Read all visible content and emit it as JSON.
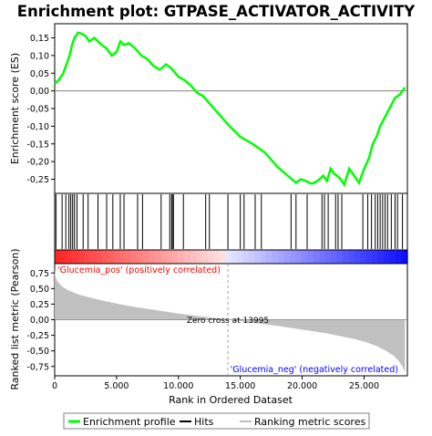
{
  "chart_data": {
    "type": "line",
    "title": "Enrichment plot: GTPASE_ACTIVATOR_ACTIVITY",
    "es_panel": {
      "ylabel": "Enrichment score (ES)",
      "ylim": [
        -0.29,
        0.19
      ],
      "yticks": [
        "0,15",
        "0,10",
        "0,05",
        "0,00",
        "-0,05",
        "-0,10",
        "-0,15",
        "-0,20",
        "-0,25"
      ],
      "ytick_values": [
        0.15,
        0.1,
        0.05,
        0.0,
        -0.05,
        -0.1,
        -0.15,
        -0.2,
        -0.25
      ],
      "series": [
        {
          "name": "Enrichment profile",
          "color": "#00ff00",
          "x": [
            0,
            300,
            700,
            900,
            1200,
            1400,
            1600,
            1900,
            2300,
            2500,
            2800,
            3200,
            3500,
            3800,
            4200,
            4600,
            5000,
            5300,
            5600,
            6000,
            6500,
            7000,
            7500,
            8000,
            8500,
            9000,
            9400,
            10000,
            10500,
            11000,
            11500,
            12000,
            13000,
            14000,
            15000,
            16000,
            17000,
            18000,
            19000,
            19500,
            19900,
            20300,
            20700,
            21000,
            21400,
            21700,
            22000,
            22300,
            22600,
            23000,
            23400,
            23800,
            24200,
            24600,
            25000,
            25400,
            25700,
            26000,
            26300,
            26600,
            26900,
            27200,
            27500,
            27900,
            28300
          ],
          "y": [
            0.02,
            0.03,
            0.05,
            0.07,
            0.1,
            0.13,
            0.15,
            0.165,
            0.16,
            0.155,
            0.14,
            0.15,
            0.14,
            0.13,
            0.12,
            0.1,
            0.11,
            0.14,
            0.13,
            0.135,
            0.12,
            0.1,
            0.09,
            0.07,
            0.06,
            0.075,
            0.065,
            0.04,
            0.03,
            0.015,
            -0.005,
            -0.015,
            -0.055,
            -0.095,
            -0.13,
            -0.15,
            -0.175,
            -0.215,
            -0.245,
            -0.26,
            -0.25,
            -0.255,
            -0.262,
            -0.26,
            -0.25,
            -0.24,
            -0.255,
            -0.22,
            -0.235,
            -0.245,
            -0.265,
            -0.22,
            -0.24,
            -0.26,
            -0.22,
            -0.19,
            -0.15,
            -0.13,
            -0.1,
            -0.08,
            -0.06,
            -0.04,
            -0.02,
            -0.01,
            0.01
          ]
        }
      ]
    },
    "hits_panel": {
      "label": "Hits",
      "hit_ranks": [
        100,
        600,
        900,
        1150,
        1300,
        1450,
        1600,
        1800,
        2300,
        2700,
        3500,
        4200,
        4700,
        5300,
        5600,
        6700,
        7100,
        8600,
        9300,
        9450,
        9500,
        9600,
        10400,
        12200,
        12500,
        14000,
        15000,
        15300,
        16200,
        16700,
        19100,
        19500,
        20400,
        21600,
        21800,
        22100,
        22700,
        22900,
        23200,
        24900,
        25300,
        25600,
        25900,
        26100,
        26300,
        26500,
        26700,
        26900,
        27200,
        27500,
        27700,
        28100
      ]
    },
    "metric_panel": {
      "ylabel": "Ranked list metric (Pearson)",
      "ylim": [
        -0.9,
        0.9
      ],
      "yticks": [
        "0,75",
        "0,50",
        "0,25",
        "0,00",
        "-0,25",
        "-0,50",
        "-0,75"
      ],
      "ytick_values": [
        0.75,
        0.5,
        0.25,
        0.0,
        -0.25,
        -0.5,
        -0.75
      ],
      "color": "#c0c0c0",
      "x": [
        0,
        50,
        200,
        500,
        1000,
        2000,
        3000,
        4000,
        6000,
        8000,
        10000,
        12000,
        13995,
        16000,
        18000,
        20000,
        22000,
        24000,
        25000,
        26000,
        26800,
        27400,
        27800,
        28100,
        28300
      ],
      "y": [
        0.82,
        0.7,
        0.62,
        0.55,
        0.48,
        0.4,
        0.35,
        0.3,
        0.22,
        0.16,
        0.1,
        0.05,
        0.0,
        -0.05,
        -0.1,
        -0.16,
        -0.22,
        -0.3,
        -0.35,
        -0.42,
        -0.5,
        -0.58,
        -0.66,
        -0.75,
        -0.85
      ],
      "zero_cross_label": "Zero cross at 13995",
      "zero_cross_x": 13995,
      "pos_label": "'Glucemia_pos' (positively correlated)",
      "neg_label": "'Glucemia_neg' (negatively correlated)",
      "pos_color": "#ff0000",
      "neg_color": "#0000ff"
    },
    "x_axis": {
      "xlabel": "Rank in Ordered Dataset",
      "xlim": [
        0,
        28500
      ],
      "xticks": [
        "0",
        "5.000",
        "10.000",
        "15.000",
        "20.000",
        "25.000"
      ],
      "xtick_values": [
        0,
        5000,
        10000,
        15000,
        20000,
        25000
      ]
    },
    "legend": {
      "placement": "bottom",
      "items": [
        {
          "name": "Enrichment profile",
          "color": "#00ff00"
        },
        {
          "name": "Hits",
          "color": "#000000"
        },
        {
          "name": "Ranking metric scores",
          "color": "#c0c0c0"
        }
      ]
    }
  }
}
